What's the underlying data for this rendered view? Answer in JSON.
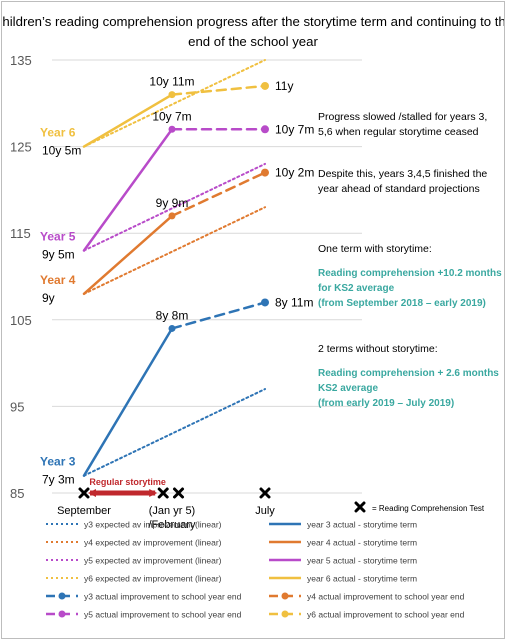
{
  "chart_data": {
    "type": "line",
    "title": "Children’s reading comprehension progress after the storytime term and continuing to the end of the school year",
    "title_lines": [
      "Children’s reading comprehension progress after the storytime term and continuing to the",
      "end of the school year"
    ],
    "ylim": [
      85,
      135
    ],
    "yticks": [
      85,
      95,
      105,
      115,
      125,
      135
    ],
    "xlabels": [
      {
        "label": "September",
        "x": 0
      },
      {
        "label": "(Jan yr 5)",
        "x": 1
      },
      {
        "label": "/February",
        "x": 1
      },
      {
        "label": "July",
        "x": 2
      }
    ],
    "year_labels": [
      {
        "label": "Year 6",
        "x": 0,
        "y": 125,
        "color": "#f0c040"
      },
      {
        "label": "Year 5",
        "x": 0,
        "y": 113,
        "color": "#b84bc9"
      },
      {
        "label": "Year 4",
        "x": 0,
        "y": 108,
        "color": "#e07a30"
      },
      {
        "label": "Year 3",
        "x": 0,
        "y": 87,
        "color": "#2e74b5"
      }
    ],
    "point_labels": [
      {
        "text": "10y 5m",
        "x": 0,
        "y": 125
      },
      {
        "text": "9y 5m",
        "x": 0,
        "y": 113
      },
      {
        "text": "9y",
        "x": 0,
        "y": 108
      },
      {
        "text": "7y 3m",
        "x": 0,
        "y": 87
      },
      {
        "text": "10y 11m",
        "x": 1,
        "y": 131
      },
      {
        "text": "10y 7m",
        "x": 1,
        "y": 127
      },
      {
        "text": "9y 9m",
        "x": 1,
        "y": 117
      },
      {
        "text": "8y 8m",
        "x": 1,
        "y": 104
      },
      {
        "text": "11y",
        "x": 2,
        "y": 132
      },
      {
        "text": "10y 7m",
        "x": 2,
        "y": 127
      },
      {
        "text": "10y 2m",
        "x": 2,
        "y": 122
      },
      {
        "text": "8y 11m",
        "x": 2,
        "y": 107
      }
    ],
    "series": [
      {
        "name": "y3 expected av improvement (linear)",
        "style": "dotted",
        "color": "#2e74b5",
        "points": [
          [
            0,
            87
          ],
          [
            2,
            97
          ]
        ]
      },
      {
        "name": "y4 expected av improvement (linear)",
        "style": "dotted",
        "color": "#e07a30",
        "points": [
          [
            0,
            108
          ],
          [
            2,
            118
          ]
        ]
      },
      {
        "name": "y5 expected av improvement (linear)",
        "style": "dotted",
        "color": "#b84bc9",
        "points": [
          [
            0,
            113
          ],
          [
            2,
            123
          ]
        ]
      },
      {
        "name": "y6 expected av improvement (linear)",
        "style": "dotted",
        "color": "#f0c040",
        "points": [
          [
            0,
            125
          ],
          [
            2,
            135
          ]
        ]
      },
      {
        "name": "year 3 actual - storytime term",
        "style": "solid",
        "color": "#2e74b5",
        "points": [
          [
            0,
            87
          ],
          [
            1,
            104
          ]
        ]
      },
      {
        "name": "year 4 actual - storytime term",
        "style": "solid",
        "color": "#e07a30",
        "points": [
          [
            0,
            108
          ],
          [
            1,
            117
          ]
        ]
      },
      {
        "name": "year 5 actual - storytime term",
        "style": "solid",
        "color": "#b84bc9",
        "points": [
          [
            0,
            113
          ],
          [
            1,
            127
          ]
        ]
      },
      {
        "name": "year 6 actual - storytime term",
        "style": "solid",
        "color": "#f0c040",
        "points": [
          [
            0,
            125
          ],
          [
            1,
            131
          ]
        ]
      },
      {
        "name": "y3 actual improvement to school year end",
        "style": "dashed",
        "color": "#2e74b5",
        "points": [
          [
            1,
            104
          ],
          [
            2,
            107
          ]
        ]
      },
      {
        "name": "y4 actual improvement to school year end",
        "style": "dashed",
        "color": "#e07a30",
        "points": [
          [
            1,
            117
          ],
          [
            2,
            122
          ]
        ]
      },
      {
        "name": "y5 actual improvement to school year end",
        "style": "dashed",
        "color": "#b84bc9",
        "points": [
          [
            1,
            127
          ],
          [
            2,
            127
          ]
        ]
      },
      {
        "name": "y6 actual improvement to school year end",
        "style": "dashed",
        "color": "#f0c040",
        "points": [
          [
            1,
            131
          ],
          [
            2,
            132
          ]
        ]
      }
    ],
    "test_markers": [
      0,
      0.9,
      1.07,
      2
    ],
    "storytime": {
      "label": "Regular storytime",
      "from": 0,
      "to": 0.9,
      "color": "#c0282d"
    },
    "test_legend": "= Reading Comprehension Test",
    "annotations": [
      {
        "lines": [
          "Progress slowed /stalled for years 3,",
          "5,6 when regular storytime ceased"
        ],
        "color": "#000000",
        "bold": false
      },
      {
        "lines": [
          "Despite this, years 3,4,5 finished the",
          "year ahead of standard projections"
        ],
        "color": "#000000",
        "bold": false
      },
      {
        "lines": [
          "One term with storytime:"
        ],
        "color": "#000000",
        "bold": false
      },
      {
        "lines": [
          "Reading comprehension +10.2 months",
          "for KS2 average",
          "(from September 2018 – early 2019)"
        ],
        "color": "#3aa8a0",
        "bold": true
      },
      {
        "lines": [
          "2 terms without storytime:"
        ],
        "color": "#000000",
        "bold": false
      },
      {
        "lines": [
          "Reading comprehension + 2.6 months",
          "KS2 average",
          "(from early 2019 – July 2019)"
        ],
        "color": "#3aa8a0",
        "bold": true
      }
    ],
    "legend_placement": "bottom"
  }
}
